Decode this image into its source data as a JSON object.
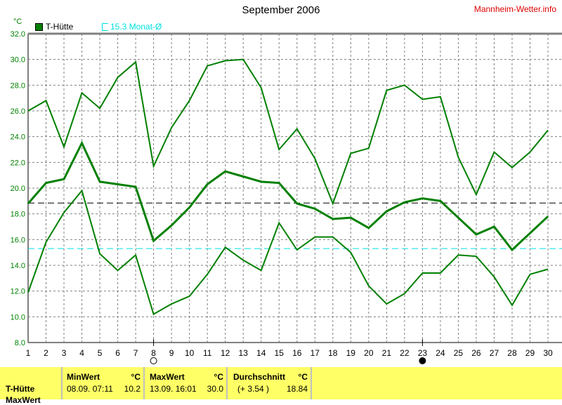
{
  "header": {
    "title": "September 2006",
    "site": "Mannheim-Wetter.info",
    "unit": "°C"
  },
  "legend": {
    "series": "T-Hütte",
    "avg_label": "15.3 Monat-Ø"
  },
  "chart_data": {
    "type": "line",
    "title": "September 2006",
    "ylabel": "°C",
    "ylim": [
      8,
      32
    ],
    "yticks": [
      "8.0",
      "10.0",
      "12.0",
      "14.0",
      "16.0",
      "18.0",
      "20.0",
      "22.0",
      "24.0",
      "26.0",
      "28.0",
      "30.0",
      "32.0"
    ],
    "x": [
      1,
      2,
      3,
      4,
      5,
      6,
      7,
      8,
      9,
      10,
      11,
      12,
      13,
      14,
      15,
      16,
      17,
      18,
      19,
      20,
      21,
      22,
      23,
      24,
      25,
      26,
      27,
      28,
      29,
      30
    ],
    "grid": true,
    "color": "#008000",
    "series": [
      {
        "values": [
          26.0,
          26.8,
          23.2,
          27.4,
          26.2,
          28.6,
          29.8,
          21.7,
          24.7,
          26.8,
          29.5,
          29.9,
          30.0,
          27.8,
          23.0,
          24.6,
          22.3,
          18.8,
          22.7,
          23.1,
          27.6,
          28.0,
          26.9,
          27.1,
          22.4,
          19.5,
          22.8,
          21.6,
          22.8,
          24.5
        ]
      },
      {
        "values": [
          18.8,
          20.4,
          20.7,
          23.5,
          20.5,
          20.3,
          20.1,
          15.9,
          17.1,
          18.5,
          20.3,
          21.3,
          20.9,
          20.5,
          20.4,
          18.8,
          18.4,
          17.6,
          17.7,
          16.9,
          18.2,
          18.9,
          19.2,
          19.0,
          17.7,
          16.4,
          17.0,
          15.2,
          16.5,
          17.8
        ]
      },
      {
        "values": [
          11.9,
          15.8,
          18.1,
          19.8,
          14.9,
          13.6,
          14.8,
          10.2,
          11.0,
          11.6,
          13.3,
          15.4,
          14.4,
          13.6,
          17.3,
          15.2,
          16.2,
          16.2,
          15.0,
          12.4,
          11.0,
          11.8,
          13.4,
          13.4,
          14.8,
          14.7,
          13.1,
          10.9,
          13.3,
          13.7
        ]
      }
    ],
    "reference_lines": [
      {
        "value": 18.84,
        "color": "#000000",
        "style": "dashed"
      },
      {
        "value": 15.3,
        "color": "#00e0e0",
        "style": "dashed"
      }
    ],
    "moon_phases": [
      {
        "day": 8,
        "phase": "full"
      },
      {
        "day": 23,
        "phase": "new"
      }
    ]
  },
  "table": {
    "row_label": "T-Hütte",
    "row_label2": "MaxWert",
    "min": {
      "header": "MinWert",
      "unit": "°C",
      "date": "08.09.  07:11",
      "value": "10.2"
    },
    "max": {
      "header": "MaxWert",
      "unit": "°C",
      "date": "13.09.  16:01",
      "value": "30.0"
    },
    "avg": {
      "header": "Durchschnitt",
      "unit": "°C",
      "diff": "(+ 3.54 )",
      "value": "18.84"
    }
  }
}
